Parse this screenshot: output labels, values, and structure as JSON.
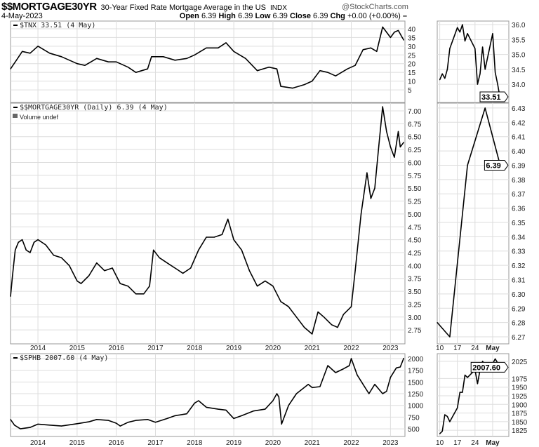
{
  "header": {
    "symbol": "$$MORTGAGE30YR",
    "description": "30-Year Fixed Rate Mortgage Average in the US",
    "exchange": "INDX",
    "brand": "@StockCharts.com",
    "date": "4-May-2023",
    "open_label": "Open",
    "open": "6.39",
    "high_label": "High",
    "high": "6.39",
    "low_label": "Low",
    "low": "6.39",
    "close_label": "Close",
    "close": "6.39",
    "chg_label": "Chg",
    "chg": "+0.00 (+0.00%)"
  },
  "colors": {
    "line": "#000000",
    "grid": "#dddddd",
    "border": "#999999"
  },
  "chart_data": [
    {
      "type": "line",
      "panel": "top-main",
      "legend": "$TNX 33.51 (4 May)",
      "current_value": "33.51",
      "ylim": [
        -2.2,
        44.4
      ],
      "yticks": [
        5,
        10,
        15,
        20,
        25,
        30,
        35,
        40
      ],
      "xlim": [
        2013.3,
        2023.37
      ],
      "xticks": [
        "2014",
        "2015",
        "2016",
        "2017",
        "2018",
        "2019",
        "2020",
        "2021",
        "2022",
        "2023"
      ],
      "x": [
        2013.3,
        2013.45,
        2013.6,
        2013.8,
        2014.0,
        2014.3,
        2014.6,
        2015.0,
        2015.2,
        2015.5,
        2015.8,
        2016.0,
        2016.3,
        2016.5,
        2016.8,
        2016.9,
        2017.2,
        2017.5,
        2017.8,
        2018.0,
        2018.3,
        2018.6,
        2018.8,
        2019.0,
        2019.3,
        2019.6,
        2019.9,
        2020.1,
        2020.2,
        2020.5,
        2020.8,
        2021.0,
        2021.2,
        2021.4,
        2021.6,
        2021.9,
        2022.1,
        2022.3,
        2022.5,
        2022.65,
        2022.8,
        2022.9,
        2023.0,
        2023.1,
        2023.2,
        2023.3,
        2023.34
      ],
      "y": [
        17,
        22,
        27,
        26,
        30,
        26,
        24,
        20,
        19,
        23,
        21,
        21,
        18,
        15,
        17,
        24,
        24,
        22,
        23,
        25,
        29,
        29,
        32,
        27,
        23,
        16,
        18,
        17,
        7,
        6,
        8,
        10,
        16,
        15,
        13,
        17,
        19,
        28,
        29,
        27,
        41,
        38,
        35,
        38,
        39,
        35,
        33.51
      ]
    },
    {
      "type": "line",
      "panel": "top-zoom",
      "current_value": "33.51",
      "ylim": [
        33.39,
        36.12
      ],
      "yticks": [
        "34.0",
        "34.5",
        "35.0",
        "35.5",
        "36.0"
      ],
      "xticks": [
        "10",
        "17",
        "24",
        "May"
      ],
      "dates": [
        "2023-04-10",
        "2023-04-11",
        "2023-04-12",
        "2023-04-13",
        "2023-04-14",
        "2023-04-17",
        "2023-04-18",
        "2023-04-19",
        "2023-04-20",
        "2023-04-21",
        "2023-04-24",
        "2023-04-25",
        "2023-04-26",
        "2023-04-27",
        "2023-04-28",
        "2023-05-01",
        "2023-05-02",
        "2023-05-03",
        "2023-05-04"
      ],
      "y": [
        34.15,
        34.35,
        34.2,
        34.5,
        35.2,
        35.9,
        35.75,
        36.0,
        35.45,
        35.7,
        35.2,
        34.0,
        34.35,
        35.25,
        34.5,
        35.7,
        34.4,
        34.0,
        33.51
      ]
    },
    {
      "type": "line",
      "panel": "middle-main",
      "legend": "$$MORTGAGE30YR (Daily) 6.39 (4 May)",
      "sublegend": "Volume undef",
      "current_value": "6.39",
      "ylim": [
        2.48,
        7.15
      ],
      "yticks": [
        "2.75",
        "3.00",
        "3.25",
        "3.50",
        "3.75",
        "4.00",
        "4.25",
        "4.50",
        "4.75",
        "5.00",
        "5.25",
        "5.50",
        "5.75",
        "6.00",
        "6.25",
        "6.50",
        "6.75",
        "7.00"
      ],
      "xlim": [
        2013.3,
        2023.37
      ],
      "xticks": [
        "2014",
        "2015",
        "2016",
        "2017",
        "2018",
        "2019",
        "2020",
        "2021",
        "2022",
        "2023"
      ],
      "x": [
        2013.3,
        2013.35,
        2013.42,
        2013.5,
        2013.6,
        2013.7,
        2013.8,
        2013.9,
        2014.0,
        2014.2,
        2014.4,
        2014.6,
        2014.8,
        2015.0,
        2015.1,
        2015.3,
        2015.5,
        2015.7,
        2015.9,
        2016.1,
        2016.3,
        2016.5,
        2016.7,
        2016.85,
        2016.95,
        2017.1,
        2017.3,
        2017.5,
        2017.7,
        2017.9,
        2018.1,
        2018.3,
        2018.5,
        2018.7,
        2018.85,
        2019.0,
        2019.2,
        2019.4,
        2019.6,
        2019.8,
        2020.0,
        2020.2,
        2020.4,
        2020.6,
        2020.8,
        2021.0,
        2021.15,
        2021.3,
        2021.5,
        2021.65,
        2021.8,
        2022.0,
        2022.1,
        2022.25,
        2022.4,
        2022.5,
        2022.6,
        2022.7,
        2022.8,
        2022.9,
        2023.0,
        2023.1,
        2023.2,
        2023.25,
        2023.34
      ],
      "y": [
        3.4,
        3.8,
        4.3,
        4.45,
        4.5,
        4.3,
        4.25,
        4.45,
        4.5,
        4.4,
        4.2,
        4.15,
        4.0,
        3.7,
        3.65,
        3.8,
        4.05,
        3.9,
        3.95,
        3.65,
        3.6,
        3.45,
        3.45,
        3.6,
        4.3,
        4.15,
        4.05,
        3.95,
        3.85,
        3.95,
        4.3,
        4.55,
        4.55,
        4.6,
        4.9,
        4.5,
        4.3,
        3.9,
        3.6,
        3.7,
        3.6,
        3.3,
        3.2,
        3.0,
        2.8,
        2.67,
        3.1,
        3.0,
        2.85,
        2.8,
        3.05,
        3.2,
        3.9,
        5.0,
        5.8,
        5.3,
        5.5,
        6.3,
        7.08,
        6.6,
        6.3,
        6.1,
        6.6,
        6.3,
        6.39
      ]
    },
    {
      "type": "line",
      "panel": "middle-zoom",
      "current_value": "6.39",
      "ylim": [
        6.2651,
        6.4334
      ],
      "yticks": [
        "6.27",
        "6.28",
        "6.29",
        "6.30",
        "6.31",
        "6.32",
        "6.33",
        "6.34",
        "6.35",
        "6.36",
        "6.37",
        "6.38",
        "6.39",
        "6.40",
        "6.41",
        "6.42",
        "6.43"
      ],
      "xticks": [
        "10",
        "17",
        "24",
        "May"
      ],
      "dates": [
        "2023-04-09",
        "2023-04-14",
        "2023-04-21",
        "2023-04-28",
        "2023-05-04"
      ],
      "y": [
        6.28,
        6.27,
        6.39,
        6.43,
        6.39
      ]
    },
    {
      "type": "line",
      "panel": "bottom-main",
      "legend": "$SPHB 2007.60 (4 May)",
      "current_value": "2007.60",
      "ylim": [
        337,
        2104
      ],
      "yticks": [
        "500",
        "750",
        "1000",
        "1250",
        "1500",
        "1750",
        "2000"
      ],
      "xlim": [
        2013.3,
        2023.37
      ],
      "xticks": [
        "2014",
        "2015",
        "2016",
        "2017",
        "2018",
        "2019",
        "2020",
        "2021",
        "2022",
        "2023"
      ],
      "x": [
        2013.3,
        2013.4,
        2013.55,
        2013.8,
        2014.0,
        2014.3,
        2014.6,
        2015.0,
        2015.3,
        2015.5,
        2015.8,
        2016.0,
        2016.1,
        2016.3,
        2016.5,
        2016.8,
        2017.0,
        2017.3,
        2017.5,
        2017.8,
        2018.0,
        2018.1,
        2018.3,
        2018.6,
        2018.8,
        2019.0,
        2019.2,
        2019.5,
        2019.8,
        2020.0,
        2020.1,
        2020.15,
        2020.22,
        2020.4,
        2020.6,
        2020.9,
        2021.0,
        2021.2,
        2021.4,
        2021.6,
        2021.8,
        2021.95,
        2022.0,
        2022.15,
        2022.3,
        2022.45,
        2022.6,
        2022.8,
        2022.9,
        2023.0,
        2023.15,
        2023.25,
        2023.34
      ],
      "y": [
        700,
        580,
        500,
        530,
        600,
        580,
        560,
        610,
        650,
        700,
        680,
        620,
        560,
        640,
        680,
        700,
        640,
        720,
        780,
        820,
        1050,
        1100,
        960,
        920,
        900,
        720,
        780,
        880,
        920,
        1100,
        1250,
        1180,
        600,
        1000,
        1250,
        1450,
        1380,
        1400,
        1850,
        1700,
        1780,
        1850,
        2000,
        1650,
        1450,
        1250,
        1450,
        1250,
        1300,
        1600,
        1800,
        1820,
        2007.6
      ]
    },
    {
      "type": "line",
      "panel": "bottom-zoom",
      "current_value": "2007.60",
      "ylim": [
        1807,
        2047
      ],
      "yticks": [
        "1825",
        "1850",
        "1875",
        "1900",
        "1925",
        "1950",
        "1975",
        "2025"
      ],
      "xticks": [
        "10",
        "17",
        "24",
        "May"
      ],
      "dates": [
        "2023-04-10",
        "2023-04-11",
        "2023-04-12",
        "2023-04-13",
        "2023-04-14",
        "2023-04-17",
        "2023-04-18",
        "2023-04-19",
        "2023-04-20",
        "2023-04-21",
        "2023-04-24",
        "2023-04-25",
        "2023-04-26",
        "2023-04-27",
        "2023-04-28",
        "2023-05-01",
        "2023-05-02",
        "2023-05-03",
        "2023-05-04"
      ],
      "y": [
        1815,
        1822,
        1870,
        1865,
        1850,
        1890,
        1935,
        1935,
        1985,
        1978,
        2000,
        1960,
        2000,
        2025,
        2015,
        2018,
        2032,
        2020,
        2007.6
      ]
    }
  ]
}
